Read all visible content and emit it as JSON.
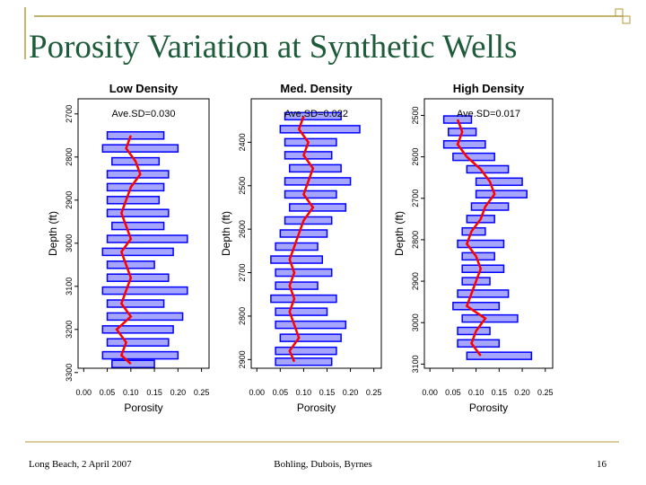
{
  "title": "Porosity Variation at Synthetic Wells",
  "footer": {
    "left": "Long Beach, 2 April 2007",
    "center": "Bohling, Dubois, Byrnes",
    "page": "16"
  },
  "chart_data": [
    {
      "type": "well-log",
      "title": "Low Density",
      "annotation": "Ave.SD=0.030",
      "x_label": "Porosity",
      "y_label": "Depth (ft)",
      "xlim": [
        -0.012,
        0.266
      ],
      "xticks": [
        {
          "value": 0,
          "label": "0.00"
        },
        {
          "value": 0.05,
          "label": "0.05"
        },
        {
          "value": 0.1,
          "label": "0.10"
        },
        {
          "value": 0.15,
          "label": "0.15"
        },
        {
          "value": 0.2,
          "label": "0.20"
        },
        {
          "value": 0.25,
          "label": "0.25"
        }
      ],
      "ylim": [
        2665,
        3290
      ],
      "yticks": [
        2700,
        2800,
        2900,
        3000,
        3100,
        3200,
        3300
      ],
      "y_inverted": true,
      "y": [
        2750,
        2780,
        2810,
        2840,
        2870,
        2900,
        2930,
        2960,
        2990,
        3020,
        3050,
        3080,
        3110,
        3140,
        3170,
        3200,
        3230,
        3260,
        3280
      ],
      "series": [
        {
          "color": "#ff0000",
          "values": [
            0.1,
            0.09,
            0.11,
            0.12,
            0.1,
            0.09,
            0.08,
            0.09,
            0.1,
            0.08,
            0.09,
            0.1,
            0.09,
            0.08,
            0.1,
            0.07,
            0.09,
            0.08,
            0.1
          ]
        },
        {
          "color": "#0000ff",
          "low": [
            0.05,
            0.04,
            0.06,
            0.05,
            0.05,
            0.05,
            0.05,
            0.06,
            0.05,
            0.04,
            0.05,
            0.05,
            0.04,
            0.05,
            0.05,
            0.04,
            0.05,
            0.04,
            0.06
          ],
          "high": [
            0.17,
            0.2,
            0.16,
            0.18,
            0.17,
            0.16,
            0.18,
            0.17,
            0.22,
            0.19,
            0.15,
            0.18,
            0.22,
            0.17,
            0.21,
            0.19,
            0.18,
            0.2,
            0.15
          ]
        }
      ]
    },
    {
      "type": "well-log",
      "title": "Med. Density",
      "annotation": "Ave.SD=0.022",
      "x_label": "Porosity",
      "y_label": "Depth (ft)",
      "xlim": [
        -0.012,
        0.266
      ],
      "xticks": [
        {
          "value": 0,
          "label": "0.00"
        },
        {
          "value": 0.05,
          "label": "0.05"
        },
        {
          "value": 0.1,
          "label": "0.10"
        },
        {
          "value": 0.15,
          "label": "0.15"
        },
        {
          "value": 0.2,
          "label": "0.20"
        },
        {
          "value": 0.25,
          "label": "0.25"
        }
      ],
      "ylim": [
        2300,
        2920
      ],
      "yticks": [
        2400,
        2500,
        2600,
        2700,
        2800,
        2900
      ],
      "y_inverted": true,
      "y": [
        2340,
        2370,
        2400,
        2430,
        2460,
        2490,
        2520,
        2550,
        2580,
        2610,
        2640,
        2670,
        2700,
        2730,
        2760,
        2790,
        2820,
        2850,
        2880,
        2905
      ],
      "series": [
        {
          "color": "#ff0000",
          "values": [
            0.1,
            0.09,
            0.11,
            0.1,
            0.12,
            0.11,
            0.1,
            0.12,
            0.1,
            0.09,
            0.08,
            0.07,
            0.08,
            0.07,
            0.08,
            0.07,
            0.08,
            0.09,
            0.07,
            0.08
          ]
        },
        {
          "color": "#0000ff",
          "low": [
            0.06,
            0.05,
            0.06,
            0.06,
            0.07,
            0.06,
            0.06,
            0.07,
            0.06,
            0.05,
            0.04,
            0.03,
            0.04,
            0.04,
            0.03,
            0.04,
            0.04,
            0.05,
            0.04,
            0.04
          ],
          "high": [
            0.18,
            0.22,
            0.17,
            0.16,
            0.18,
            0.2,
            0.17,
            0.19,
            0.16,
            0.15,
            0.13,
            0.14,
            0.16,
            0.13,
            0.17,
            0.15,
            0.19,
            0.18,
            0.17,
            0.16
          ]
        }
      ]
    },
    {
      "type": "well-log",
      "title": "High Density",
      "annotation": "Ave.SD=0.017",
      "x_label": "Porosity",
      "y_label": "Depth (ft)",
      "xlim": [
        -0.012,
        0.266
      ],
      "xticks": [
        {
          "value": 0,
          "label": "0.00"
        },
        {
          "value": 0.05,
          "label": "0.05"
        },
        {
          "value": 0.1,
          "label": "0.10"
        },
        {
          "value": 0.15,
          "label": "0.15"
        },
        {
          "value": 0.2,
          "label": "0.20"
        },
        {
          "value": 0.25,
          "label": "0.25"
        }
      ],
      "ylim": [
        2460,
        3110
      ],
      "yticks": [
        2500,
        2600,
        2700,
        2800,
        2900,
        3000,
        3100
      ],
      "y_inverted": true,
      "y": [
        2510,
        2540,
        2570,
        2600,
        2630,
        2660,
        2690,
        2720,
        2750,
        2780,
        2810,
        2840,
        2870,
        2900,
        2930,
        2960,
        2990,
        3020,
        3050,
        3080
      ],
      "series": [
        {
          "color": "#ff0000",
          "values": [
            0.06,
            0.07,
            0.06,
            0.08,
            0.11,
            0.13,
            0.14,
            0.12,
            0.11,
            0.09,
            0.08,
            0.1,
            0.11,
            0.1,
            0.09,
            0.08,
            0.12,
            0.1,
            0.09,
            0.11
          ]
        },
        {
          "color": "#0000ff",
          "low": [
            0.03,
            0.04,
            0.03,
            0.05,
            0.08,
            0.1,
            0.1,
            0.09,
            0.08,
            0.07,
            0.06,
            0.07,
            0.07,
            0.07,
            0.06,
            0.05,
            0.07,
            0.06,
            0.06,
            0.08
          ],
          "high": [
            0.09,
            0.1,
            0.12,
            0.14,
            0.17,
            0.2,
            0.21,
            0.17,
            0.14,
            0.12,
            0.16,
            0.14,
            0.16,
            0.13,
            0.17,
            0.15,
            0.19,
            0.13,
            0.15,
            0.22
          ]
        }
      ]
    }
  ]
}
